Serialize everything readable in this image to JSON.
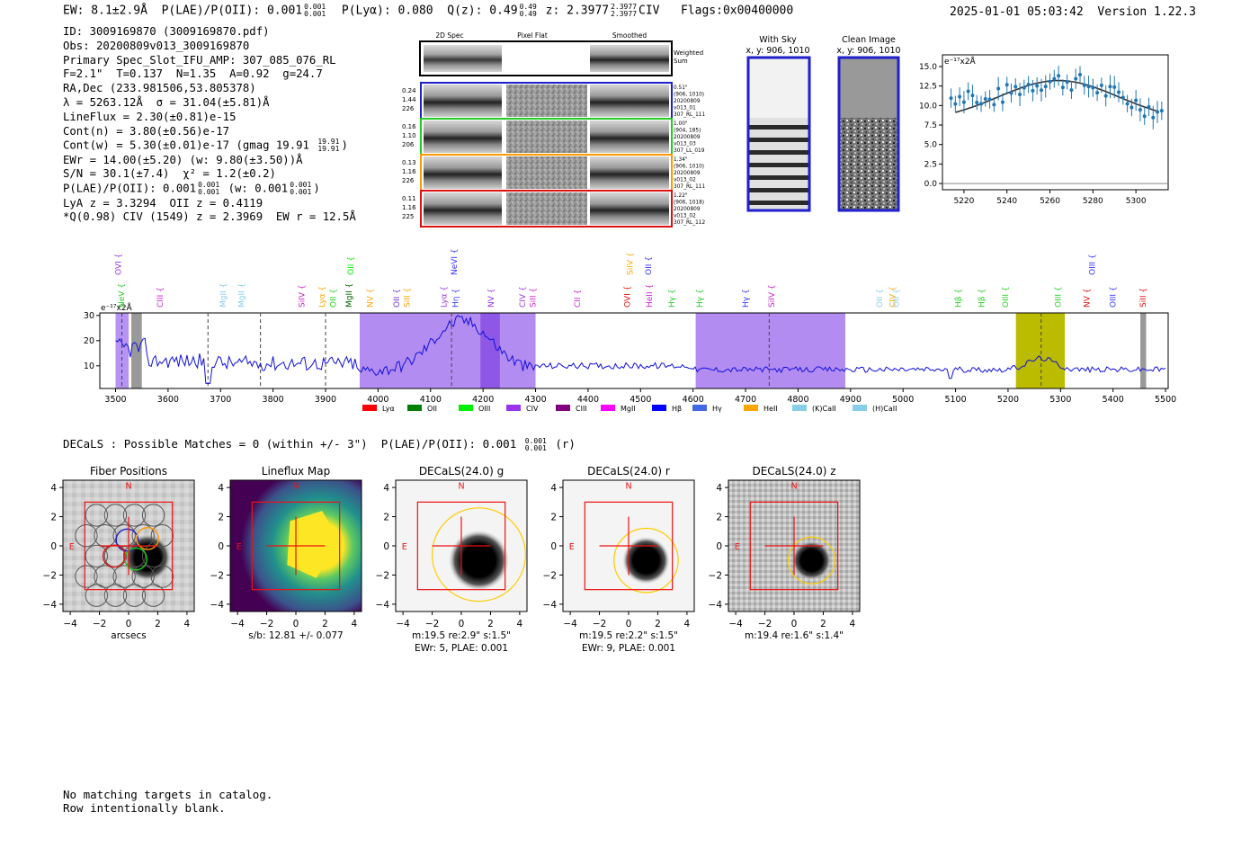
{
  "header": {
    "ew": "EW: 8.1±2.9Å",
    "plae": "P(LAE)/P(OII): 0.001",
    "plae_hi": "0.001",
    "plae_lo": "0.001",
    "plya": "P(Lyα): 0.080",
    "q": "Q(z): 0.49",
    "q_hi": "0.49",
    "q_lo": "0.49",
    "z": "z: 2.3977",
    "z_hi": "2.3977",
    "z_lo": "2.3977",
    "line": "CIV",
    "flags": "Flags:0x00400000",
    "datetime": "2025-01-01 05:03:42",
    "version": "Version 1.22.3"
  },
  "info": {
    "id": "ID: 3009169870 (3009169870.pdf)",
    "obs": "Obs: 20200809v013_3009169870",
    "primary": "Primary Spec_Slot_IFU_AMP: 307_085_076_RL",
    "fit": "F=2.1\"  T=0.137  N=1.35  A=0.92  g=24.7",
    "radec": "RA,Dec (233.981506,53.805378)",
    "lambda": "λ = 5263.12Å  σ = 31.04(±5.81)Å",
    "lineflux": "LineFlux = 2.30(±0.81)e-15",
    "contn": "Cont(n) = 3.80(±0.56)e-17",
    "contw": "Cont(w) = 5.30(±0.01)e-17 (gmag 19.91",
    "contw_hi": "19.91",
    "contw_lo": "19.91",
    "ewr": "EWr = 14.00(±5.20) (w: 9.80(±3.50))Å",
    "sn": "S/N = 30.1(±7.4)  χ² = 1.2(±0.2)",
    "plae": "P(LAE)/P(OII): 0.001",
    "plae_frac_hi": "0.001",
    "plae_frac_lo": "0.001",
    "plae_w": "(w: 0.001",
    "plae_w_hi": "0.001",
    "plae_w_lo": "0.001",
    "lya": "LyA z = 3.3294  OII z = 0.4119",
    "civ": "*Q(0.98) CIV (1549) z = 2.3969  EW r = 12.5Å"
  },
  "cutouts": {
    "headers": [
      "2D Spec",
      "Pixel Flat",
      "Smoothed"
    ],
    "weighted_label": "Weighted\nSum",
    "rows": [
      {
        "left": [
          "0.24",
          "1.44",
          "226"
        ],
        "right": [
          "0.51\"",
          "(906, 1010)",
          "20200809",
          "v013_01",
          "307_RL_111"
        ],
        "color": "#1f1fcc"
      },
      {
        "left": [
          "0.16",
          "1.10",
          "206"
        ],
        "right": [
          "1.00\"",
          "(904, 185)",
          "20200809",
          "v013_03",
          "307_LL_019"
        ],
        "color": "#22cc22"
      },
      {
        "left": [
          "0.13",
          "1.16",
          "226"
        ],
        "right": [
          "1.34\"",
          "(906, 1010)",
          "20200809",
          "v013_02",
          "307_RL_111"
        ],
        "color": "#ff9900"
      },
      {
        "left": [
          "0.11",
          "1.16",
          "225"
        ],
        "right": [
          "1.22\"",
          "(906, 1018)",
          "20200809",
          "v013_02",
          "307_RL_112"
        ],
        "color": "#dd1111"
      }
    ],
    "with_sky_title": "With Sky",
    "with_sky_xy": "x, y: 906, 1010",
    "clean_title": "Clean Image",
    "clean_xy": "x, y: 906, 1010"
  },
  "zoom_chart": {
    "unit": "e⁻¹⁷x2Å",
    "yticks": [
      "0.0",
      "2.5",
      "5.0",
      "7.5",
      "10.0",
      "12.5",
      "15.0"
    ],
    "xticks": [
      "5220",
      "5240",
      "5260",
      "5280",
      "5300"
    ]
  },
  "spectrum": {
    "unit": "e⁻¹⁷x2Å",
    "yticks": [
      "10",
      "20",
      "30"
    ],
    "xticks": [
      "3500",
      "3600",
      "3700",
      "3800",
      "3900",
      "4000",
      "4100",
      "4200",
      "4300",
      "4400",
      "4500",
      "4600",
      "4700",
      "4800",
      "4900",
      "5000",
      "5100",
      "5200",
      "5300",
      "5400",
      "5500"
    ],
    "legend": [
      {
        "label": "Lyα",
        "color": "#ff0000"
      },
      {
        "label": "OII",
        "color": "#008000"
      },
      {
        "label": "OIII",
        "color": "#00ee00"
      },
      {
        "label": "CIV",
        "color": "#9933ee"
      },
      {
        "label": "CIII",
        "color": "#800080"
      },
      {
        "label": "MgII",
        "color": "#ff00ff"
      },
      {
        "label": "Hβ",
        "color": "#0000ff"
      },
      {
        "label": "Hγ",
        "color": "#4169e1"
      },
      {
        "label": "HeII",
        "color": "#ffa500"
      },
      {
        "label": "(K)CaII",
        "color": "#87ceeb"
      },
      {
        "label": "(H)CaII",
        "color": "#87ceeb"
      }
    ],
    "line_labels": [
      {
        "t": "OVI",
        "c": "#9933ee",
        "w": 3510,
        "r": 2
      },
      {
        "t": "NeV",
        "c": "#22cc22",
        "w": 3516,
        "r": 1
      },
      {
        "t": "CIII",
        "c": "#cc22cc",
        "w": 3590,
        "r": 1
      },
      {
        "t": "MgII",
        "c": "#87ceeb",
        "w": 3710,
        "r": 1
      },
      {
        "t": "MgII",
        "c": "#87ceeb",
        "w": 3745,
        "r": 1
      },
      {
        "t": "SiIV",
        "c": "#cc22cc",
        "w": 3860,
        "r": 1
      },
      {
        "t": "Lyα",
        "c": "#ffa500",
        "w": 3898,
        "r": 1
      },
      {
        "t": "OII",
        "c": "#22cc22",
        "w": 3920,
        "r": 1
      },
      {
        "t": "MgII",
        "c": "#006600",
        "w": 3950,
        "r": 1
      },
      {
        "t": "OII",
        "c": "#00ee00",
        "w": 3953,
        "r": 2
      },
      {
        "t": "NV",
        "c": "#ffa500",
        "w": 3990,
        "r": 1
      },
      {
        "t": "OII",
        "c": "#6633cc",
        "w": 4040,
        "r": 1
      },
      {
        "t": "SiII",
        "c": "#ffa500",
        "w": 4060,
        "r": 1
      },
      {
        "t": "Lyα",
        "c": "#9933ee",
        "w": 4130,
        "r": 1
      },
      {
        "t": "Hη",
        "c": "#3333ff",
        "w": 4153,
        "r": 1
      },
      {
        "t": "NeVI",
        "c": "#3333ff",
        "w": 4150,
        "r": 2
      },
      {
        "t": "NV",
        "c": "#9933ee",
        "w": 4220,
        "r": 1
      },
      {
        "t": "CIV",
        "c": "#9933ee",
        "w": 4280,
        "r": 1
      },
      {
        "t": "SiII",
        "c": "#cc22cc",
        "w": 4300,
        "r": 1
      },
      {
        "t": "CII",
        "c": "#cc22cc",
        "w": 4385,
        "r": 1
      },
      {
        "t": "OVI",
        "c": "#dd1111",
        "w": 4480,
        "r": 1
      },
      {
        "t": "SiIV",
        "c": "#ffa500",
        "w": 4485,
        "r": 2
      },
      {
        "t": "HeII",
        "c": "#cc22cc",
        "w": 4522,
        "r": 1
      },
      {
        "t": "OII",
        "c": "#3333ff",
        "w": 4520,
        "r": 2
      },
      {
        "t": "Hγ",
        "c": "#22cc22",
        "w": 4565,
        "r": 1
      },
      {
        "t": "Hγ",
        "c": "#22cc22",
        "w": 4618,
        "r": 1
      },
      {
        "t": "Hγ",
        "c": "#3333ff",
        "w": 4705,
        "r": 1
      },
      {
        "t": "SiIV",
        "c": "#cc22cc",
        "w": 4755,
        "r": 1
      },
      {
        "t": "OII",
        "c": "#87ceeb",
        "w": 4960,
        "r": 1
      },
      {
        "t": "CIV",
        "c": "#ffa500",
        "w": 4985,
        "r": 1
      },
      {
        "t": "OII",
        "c": "#87ceeb",
        "w": 4992,
        "r": 1
      },
      {
        "t": "Hβ",
        "c": "#22cc22",
        "w": 5110,
        "r": 1
      },
      {
        "t": "Hβ",
        "c": "#22cc22",
        "w": 5155,
        "r": 1
      },
      {
        "t": "OIII",
        "c": "#22cc22",
        "w": 5200,
        "r": 1
      },
      {
        "t": "OIII",
        "c": "#22cc22",
        "w": 5300,
        "r": 1
      },
      {
        "t": "NV",
        "c": "#dd1111",
        "w": 5355,
        "r": 1
      },
      {
        "t": "OIII",
        "c": "#3333ff",
        "w": 5405,
        "r": 1
      },
      {
        "t": "OIII",
        "c": "#3333ff",
        "w": 5365,
        "r": 2
      },
      {
        "t": "SiII",
        "c": "#dd1111",
        "w": 5462,
        "r": 1
      }
    ]
  },
  "decals_line": "DECaLS : Possible Matches = 0 (within +/- 3\")  P(LAE)/P(OII): 0.001",
  "decals_frac_hi": "0.001",
  "decals_frac_lo": "0.001",
  "decals_suffix": "(r)",
  "panels": [
    {
      "title": "Fiber Positions",
      "cap1": "arcsecs",
      "cap2": ""
    },
    {
      "title": "Lineflux Map",
      "cap1": "s/b: 12.81 +/- 0.077",
      "cap2": ""
    },
    {
      "title": "DECaLS(24.0) g",
      "cap1": "m:19.5  re:2.9\"  s:1.5\"",
      "cap2": "EWr: 5, PLAE: 0.001"
    },
    {
      "title": "DECaLS(24.0) r",
      "cap1": "m:19.5  re:2.2\"  s:1.5\"",
      "cap2": "EWr: 9, PLAE: 0.001"
    },
    {
      "title": "DECaLS(24.0) z",
      "cap1": "m:19.4  re:1.6\"  s:1.4\"",
      "cap2": ""
    }
  ],
  "panel_ticks": [
    "4",
    "2",
    "0",
    "−2",
    "−4"
  ],
  "panel_xticks": [
    "−4",
    "−2",
    "0",
    "2",
    "4"
  ],
  "compass_n": "N",
  "compass_e": "E",
  "footer": {
    "line1": "No matching targets in catalog.",
    "line2": "Row intentionally blank."
  }
}
